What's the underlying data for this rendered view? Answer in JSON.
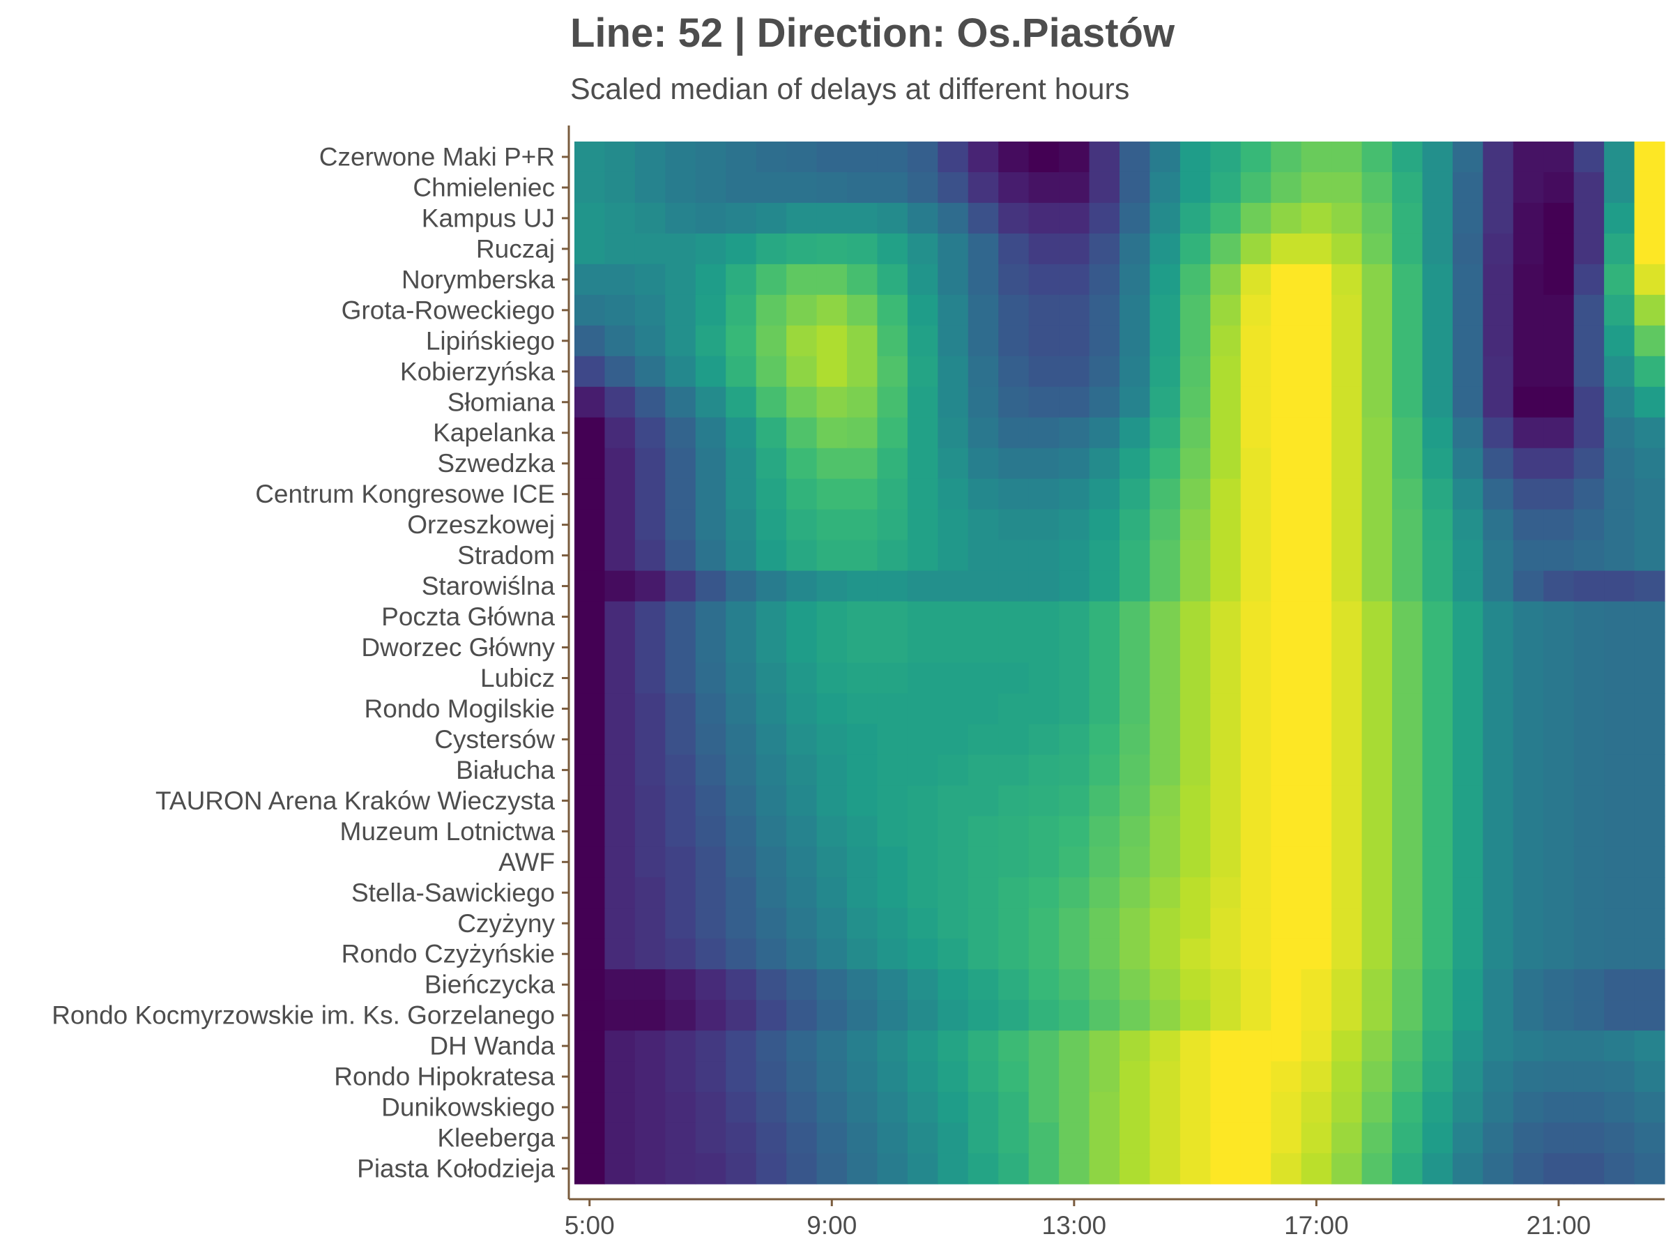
{
  "chart_data": {
    "type": "heatmap",
    "title": "Line: 52 | Direction: Os.Piastów",
    "subtitle": "Scaled median of delays at different hours",
    "xlabel": "",
    "ylabel": "",
    "x_tick_labels": [
      "5:00",
      "9:00",
      "13:00",
      "17:00",
      "21:00"
    ],
    "x_tick_hours": [
      5,
      9,
      13,
      17,
      21
    ],
    "x_hours": [
      5,
      5.5,
      6,
      6.5,
      7,
      7.5,
      8,
      8.5,
      9,
      9.5,
      10,
      10.5,
      11,
      11.5,
      12,
      12.5,
      13,
      13.5,
      14,
      14.5,
      15,
      15.5,
      16,
      16.5,
      17,
      17.5,
      18,
      18.5,
      19,
      19.5,
      20,
      20.5,
      21,
      21.5,
      22,
      22.5
    ],
    "stops": [
      "Czerwone Maki P+R",
      "Chmieleniec",
      "Kampus UJ",
      "Ruczaj",
      "Norymberska",
      "Grota-Roweckiego",
      "Lipińskiego",
      "Kobierzyńska",
      "Słomiana",
      "Kapelanka",
      "Szwedzka",
      "Centrum Kongresowe ICE",
      "Orzeszkowej",
      "Stradom",
      "Starowiślna",
      "Poczta Główna",
      "Dworzec Główny",
      "Lubicz",
      "Rondo Mogilskie",
      "Cystersów",
      "Białucha",
      "TAURON Arena Kraków Wieczysta",
      "Muzeum Lotnictwa",
      "AWF",
      "Stella-Sawickiego",
      "Czyżyny",
      "Rondo Czyżyńskie",
      "Bieńczycka",
      "Rondo Kocmyrzowskie im. Ks. Gorzelanego",
      "DH Wanda",
      "Rondo Hipokratesa",
      "Dunikowskiego",
      "Kleeberga",
      "Piasta Kołodzieja"
    ],
    "colorscale": "viridis",
    "value_range": [
      0,
      1
    ],
    "values": [
      [
        0.5,
        0.48,
        0.45,
        0.42,
        0.4,
        0.38,
        0.36,
        0.35,
        0.33,
        0.33,
        0.33,
        0.3,
        0.2,
        0.1,
        0.03,
        0.0,
        0.02,
        0.15,
        0.3,
        0.42,
        0.55,
        0.6,
        0.67,
        0.73,
        0.77,
        0.77,
        0.7,
        0.6,
        0.5,
        0.35,
        0.15,
        0.05,
        0.05,
        0.2,
        0.5,
        1.0
      ],
      [
        0.5,
        0.48,
        0.45,
        0.42,
        0.4,
        0.38,
        0.38,
        0.38,
        0.37,
        0.36,
        0.36,
        0.32,
        0.25,
        0.15,
        0.08,
        0.05,
        0.05,
        0.15,
        0.3,
        0.45,
        0.55,
        0.62,
        0.7,
        0.76,
        0.8,
        0.8,
        0.73,
        0.63,
        0.5,
        0.33,
        0.15,
        0.05,
        0.03,
        0.15,
        0.5,
        1.0
      ],
      [
        0.52,
        0.5,
        0.48,
        0.45,
        0.43,
        0.45,
        0.47,
        0.5,
        0.5,
        0.5,
        0.48,
        0.42,
        0.35,
        0.25,
        0.15,
        0.12,
        0.12,
        0.2,
        0.33,
        0.48,
        0.6,
        0.68,
        0.78,
        0.83,
        0.86,
        0.83,
        0.76,
        0.65,
        0.5,
        0.33,
        0.15,
        0.03,
        0.0,
        0.15,
        0.55,
        1.0
      ],
      [
        0.52,
        0.5,
        0.5,
        0.5,
        0.52,
        0.55,
        0.6,
        0.62,
        0.63,
        0.62,
        0.57,
        0.5,
        0.42,
        0.33,
        0.23,
        0.18,
        0.18,
        0.25,
        0.38,
        0.52,
        0.65,
        0.75,
        0.85,
        0.92,
        0.92,
        0.87,
        0.78,
        0.65,
        0.5,
        0.32,
        0.13,
        0.03,
        0.0,
        0.15,
        0.6,
        1.0
      ],
      [
        0.45,
        0.45,
        0.47,
        0.5,
        0.55,
        0.62,
        0.7,
        0.75,
        0.75,
        0.7,
        0.62,
        0.52,
        0.42,
        0.33,
        0.25,
        0.22,
        0.22,
        0.28,
        0.4,
        0.55,
        0.7,
        0.82,
        0.95,
        1.0,
        1.0,
        0.92,
        0.82,
        0.68,
        0.52,
        0.33,
        0.12,
        0.02,
        0.0,
        0.2,
        0.65,
        0.95
      ],
      [
        0.4,
        0.42,
        0.45,
        0.5,
        0.56,
        0.65,
        0.75,
        0.8,
        0.83,
        0.78,
        0.68,
        0.55,
        0.45,
        0.35,
        0.28,
        0.25,
        0.25,
        0.3,
        0.42,
        0.57,
        0.72,
        0.85,
        0.97,
        1.0,
        1.0,
        0.93,
        0.82,
        0.68,
        0.52,
        0.33,
        0.12,
        0.02,
        0.02,
        0.25,
        0.6,
        0.85
      ],
      [
        0.32,
        0.38,
        0.43,
        0.5,
        0.58,
        0.67,
        0.77,
        0.85,
        0.88,
        0.83,
        0.7,
        0.57,
        0.45,
        0.35,
        0.28,
        0.25,
        0.25,
        0.3,
        0.42,
        0.57,
        0.72,
        0.87,
        0.98,
        1.0,
        1.0,
        0.93,
        0.82,
        0.68,
        0.52,
        0.33,
        0.12,
        0.02,
        0.02,
        0.25,
        0.55,
        0.75
      ],
      [
        0.22,
        0.3,
        0.38,
        0.47,
        0.55,
        0.65,
        0.75,
        0.83,
        0.88,
        0.83,
        0.72,
        0.58,
        0.47,
        0.37,
        0.3,
        0.27,
        0.27,
        0.32,
        0.43,
        0.58,
        0.73,
        0.88,
        0.98,
        1.0,
        1.0,
        0.93,
        0.82,
        0.68,
        0.52,
        0.33,
        0.13,
        0.02,
        0.02,
        0.25,
        0.5,
        0.65
      ],
      [
        0.08,
        0.18,
        0.28,
        0.38,
        0.48,
        0.58,
        0.7,
        0.78,
        0.82,
        0.8,
        0.7,
        0.57,
        0.47,
        0.38,
        0.32,
        0.3,
        0.3,
        0.35,
        0.45,
        0.6,
        0.74,
        0.88,
        0.98,
        1.0,
        1.0,
        0.93,
        0.82,
        0.68,
        0.52,
        0.33,
        0.13,
        0.0,
        0.0,
        0.2,
        0.45,
        0.55
      ],
      [
        0.0,
        0.12,
        0.22,
        0.32,
        0.42,
        0.52,
        0.63,
        0.72,
        0.78,
        0.77,
        0.68,
        0.57,
        0.48,
        0.4,
        0.35,
        0.35,
        0.37,
        0.42,
        0.52,
        0.63,
        0.76,
        0.88,
        0.98,
        1.0,
        1.0,
        0.93,
        0.83,
        0.7,
        0.55,
        0.38,
        0.2,
        0.08,
        0.08,
        0.2,
        0.4,
        0.45
      ],
      [
        0.0,
        0.1,
        0.2,
        0.3,
        0.4,
        0.5,
        0.6,
        0.68,
        0.72,
        0.72,
        0.65,
        0.57,
        0.5,
        0.43,
        0.4,
        0.4,
        0.42,
        0.48,
        0.57,
        0.67,
        0.78,
        0.88,
        0.97,
        1.0,
        1.0,
        0.93,
        0.83,
        0.7,
        0.57,
        0.42,
        0.27,
        0.18,
        0.18,
        0.25,
        0.38,
        0.42
      ],
      [
        0.0,
        0.1,
        0.2,
        0.3,
        0.4,
        0.5,
        0.58,
        0.65,
        0.68,
        0.68,
        0.63,
        0.57,
        0.52,
        0.47,
        0.45,
        0.45,
        0.47,
        0.52,
        0.6,
        0.7,
        0.8,
        0.9,
        0.97,
        1.0,
        1.0,
        0.93,
        0.83,
        0.72,
        0.6,
        0.47,
        0.33,
        0.25,
        0.25,
        0.3,
        0.37,
        0.4
      ],
      [
        0.0,
        0.1,
        0.2,
        0.3,
        0.4,
        0.48,
        0.57,
        0.62,
        0.65,
        0.65,
        0.62,
        0.57,
        0.53,
        0.5,
        0.48,
        0.48,
        0.5,
        0.55,
        0.63,
        0.72,
        0.82,
        0.9,
        0.97,
        1.0,
        1.0,
        0.93,
        0.83,
        0.73,
        0.62,
        0.5,
        0.38,
        0.3,
        0.3,
        0.33,
        0.37,
        0.4
      ],
      [
        0.0,
        0.1,
        0.18,
        0.28,
        0.38,
        0.47,
        0.55,
        0.6,
        0.63,
        0.63,
        0.6,
        0.57,
        0.53,
        0.5,
        0.5,
        0.5,
        0.52,
        0.57,
        0.65,
        0.74,
        0.83,
        0.9,
        0.97,
        1.0,
        1.0,
        0.93,
        0.83,
        0.73,
        0.63,
        0.52,
        0.4,
        0.33,
        0.33,
        0.35,
        0.37,
        0.4
      ],
      [
        0.0,
        0.03,
        0.07,
        0.17,
        0.27,
        0.35,
        0.42,
        0.47,
        0.5,
        0.52,
        0.52,
        0.5,
        0.5,
        0.5,
        0.5,
        0.5,
        0.52,
        0.57,
        0.65,
        0.74,
        0.83,
        0.9,
        0.97,
        1.0,
        1.0,
        0.93,
        0.83,
        0.73,
        0.63,
        0.52,
        0.4,
        0.3,
        0.25,
        0.23,
        0.23,
        0.25
      ],
      [
        0.0,
        0.12,
        0.2,
        0.28,
        0.36,
        0.43,
        0.5,
        0.55,
        0.58,
        0.6,
        0.6,
        0.58,
        0.58,
        0.58,
        0.58,
        0.58,
        0.6,
        0.65,
        0.72,
        0.8,
        0.87,
        0.93,
        0.98,
        1.0,
        1.0,
        0.95,
        0.87,
        0.77,
        0.67,
        0.57,
        0.47,
        0.42,
        0.4,
        0.38,
        0.37,
        0.37
      ],
      [
        0.0,
        0.12,
        0.2,
        0.28,
        0.36,
        0.43,
        0.5,
        0.55,
        0.58,
        0.6,
        0.6,
        0.58,
        0.58,
        0.58,
        0.58,
        0.58,
        0.6,
        0.65,
        0.72,
        0.8,
        0.87,
        0.93,
        0.98,
        1.0,
        1.0,
        0.95,
        0.87,
        0.77,
        0.67,
        0.57,
        0.47,
        0.42,
        0.4,
        0.38,
        0.37,
        0.37
      ],
      [
        0.0,
        0.12,
        0.2,
        0.28,
        0.35,
        0.42,
        0.48,
        0.53,
        0.57,
        0.58,
        0.58,
        0.57,
        0.57,
        0.57,
        0.57,
        0.58,
        0.6,
        0.65,
        0.72,
        0.8,
        0.87,
        0.93,
        0.98,
        1.0,
        1.0,
        0.95,
        0.87,
        0.77,
        0.67,
        0.57,
        0.47,
        0.42,
        0.4,
        0.38,
        0.37,
        0.37
      ],
      [
        0.0,
        0.12,
        0.18,
        0.25,
        0.33,
        0.4,
        0.47,
        0.52,
        0.55,
        0.57,
        0.57,
        0.57,
        0.57,
        0.57,
        0.58,
        0.58,
        0.6,
        0.65,
        0.72,
        0.8,
        0.87,
        0.93,
        0.98,
        1.0,
        1.0,
        0.95,
        0.87,
        0.77,
        0.67,
        0.57,
        0.47,
        0.42,
        0.4,
        0.38,
        0.37,
        0.37
      ],
      [
        0.0,
        0.12,
        0.18,
        0.25,
        0.32,
        0.38,
        0.45,
        0.5,
        0.53,
        0.55,
        0.57,
        0.57,
        0.57,
        0.58,
        0.58,
        0.6,
        0.62,
        0.67,
        0.73,
        0.8,
        0.87,
        0.93,
        0.98,
        1.0,
        1.0,
        0.95,
        0.87,
        0.77,
        0.67,
        0.57,
        0.47,
        0.42,
        0.4,
        0.38,
        0.37,
        0.37
      ],
      [
        0.0,
        0.12,
        0.18,
        0.23,
        0.3,
        0.37,
        0.43,
        0.48,
        0.52,
        0.55,
        0.57,
        0.57,
        0.58,
        0.6,
        0.6,
        0.62,
        0.63,
        0.68,
        0.74,
        0.8,
        0.87,
        0.93,
        0.98,
        1.0,
        1.0,
        0.95,
        0.87,
        0.77,
        0.67,
        0.57,
        0.47,
        0.42,
        0.4,
        0.38,
        0.37,
        0.37
      ],
      [
        0.0,
        0.12,
        0.17,
        0.22,
        0.28,
        0.35,
        0.42,
        0.47,
        0.52,
        0.55,
        0.57,
        0.58,
        0.6,
        0.6,
        0.62,
        0.63,
        0.65,
        0.7,
        0.75,
        0.82,
        0.88,
        0.93,
        0.98,
        1.0,
        1.0,
        0.95,
        0.87,
        0.77,
        0.67,
        0.57,
        0.47,
        0.42,
        0.4,
        0.38,
        0.37,
        0.37
      ],
      [
        0.0,
        0.12,
        0.17,
        0.22,
        0.27,
        0.33,
        0.4,
        0.45,
        0.5,
        0.53,
        0.57,
        0.58,
        0.6,
        0.62,
        0.63,
        0.65,
        0.67,
        0.72,
        0.77,
        0.83,
        0.88,
        0.93,
        0.98,
        1.0,
        1.0,
        0.95,
        0.87,
        0.77,
        0.67,
        0.57,
        0.47,
        0.42,
        0.4,
        0.38,
        0.37,
        0.37
      ],
      [
        0.0,
        0.12,
        0.17,
        0.2,
        0.25,
        0.32,
        0.38,
        0.43,
        0.48,
        0.52,
        0.55,
        0.58,
        0.6,
        0.62,
        0.63,
        0.65,
        0.68,
        0.73,
        0.78,
        0.83,
        0.88,
        0.93,
        0.98,
        1.0,
        1.0,
        0.95,
        0.87,
        0.77,
        0.67,
        0.57,
        0.47,
        0.42,
        0.4,
        0.38,
        0.37,
        0.37
      ],
      [
        0.0,
        0.12,
        0.15,
        0.2,
        0.25,
        0.3,
        0.37,
        0.42,
        0.47,
        0.52,
        0.55,
        0.58,
        0.6,
        0.62,
        0.65,
        0.67,
        0.7,
        0.75,
        0.8,
        0.85,
        0.9,
        0.94,
        0.98,
        1.0,
        1.0,
        0.95,
        0.87,
        0.77,
        0.67,
        0.57,
        0.47,
        0.42,
        0.4,
        0.38,
        0.37,
        0.37
      ],
      [
        0.0,
        0.12,
        0.15,
        0.2,
        0.25,
        0.3,
        0.35,
        0.4,
        0.45,
        0.5,
        0.53,
        0.57,
        0.6,
        0.62,
        0.65,
        0.68,
        0.72,
        0.77,
        0.82,
        0.87,
        0.9,
        0.95,
        0.98,
        1.0,
        1.0,
        0.95,
        0.87,
        0.77,
        0.67,
        0.57,
        0.47,
        0.42,
        0.4,
        0.38,
        0.37,
        0.37
      ],
      [
        0.0,
        0.12,
        0.15,
        0.18,
        0.23,
        0.28,
        0.33,
        0.38,
        0.43,
        0.48,
        0.52,
        0.55,
        0.58,
        0.62,
        0.65,
        0.68,
        0.72,
        0.77,
        0.82,
        0.87,
        0.92,
        0.95,
        0.98,
        1.0,
        1.0,
        0.95,
        0.87,
        0.77,
        0.67,
        0.57,
        0.47,
        0.42,
        0.4,
        0.38,
        0.37,
        0.37
      ],
      [
        0.0,
        0.03,
        0.03,
        0.07,
        0.12,
        0.18,
        0.25,
        0.3,
        0.35,
        0.4,
        0.45,
        0.5,
        0.55,
        0.58,
        0.62,
        0.67,
        0.7,
        0.75,
        0.8,
        0.85,
        0.9,
        0.93,
        0.97,
        1.0,
        0.98,
        0.93,
        0.85,
        0.75,
        0.65,
        0.55,
        0.45,
        0.38,
        0.35,
        0.33,
        0.3,
        0.3
      ],
      [
        0.0,
        0.02,
        0.02,
        0.05,
        0.1,
        0.15,
        0.22,
        0.28,
        0.33,
        0.38,
        0.43,
        0.48,
        0.53,
        0.57,
        0.6,
        0.65,
        0.68,
        0.73,
        0.78,
        0.83,
        0.88,
        0.93,
        0.97,
        1.0,
        0.98,
        0.93,
        0.85,
        0.75,
        0.65,
        0.55,
        0.45,
        0.38,
        0.35,
        0.33,
        0.3,
        0.3
      ],
      [
        0.0,
        0.08,
        0.1,
        0.13,
        0.17,
        0.22,
        0.28,
        0.33,
        0.38,
        0.43,
        0.48,
        0.53,
        0.58,
        0.63,
        0.68,
        0.72,
        0.77,
        0.82,
        0.87,
        0.92,
        0.97,
        1.0,
        1.0,
        1.0,
        0.97,
        0.9,
        0.82,
        0.72,
        0.62,
        0.52,
        0.45,
        0.42,
        0.4,
        0.4,
        0.42,
        0.45
      ],
      [
        0.0,
        0.08,
        0.1,
        0.13,
        0.17,
        0.22,
        0.27,
        0.32,
        0.37,
        0.42,
        0.47,
        0.52,
        0.57,
        0.62,
        0.67,
        0.72,
        0.77,
        0.82,
        0.88,
        0.93,
        0.97,
        1.0,
        1.0,
        0.98,
        0.95,
        0.88,
        0.8,
        0.7,
        0.6,
        0.5,
        0.42,
        0.38,
        0.37,
        0.37,
        0.38,
        0.42
      ],
      [
        0.0,
        0.08,
        0.1,
        0.12,
        0.15,
        0.2,
        0.25,
        0.3,
        0.35,
        0.4,
        0.45,
        0.5,
        0.55,
        0.6,
        0.65,
        0.72,
        0.77,
        0.83,
        0.88,
        0.93,
        0.97,
        1.0,
        1.0,
        0.97,
        0.93,
        0.87,
        0.78,
        0.67,
        0.57,
        0.48,
        0.4,
        0.35,
        0.33,
        0.33,
        0.35,
        0.38
      ],
      [
        0.0,
        0.08,
        0.1,
        0.12,
        0.15,
        0.18,
        0.23,
        0.28,
        0.33,
        0.38,
        0.43,
        0.48,
        0.53,
        0.6,
        0.65,
        0.7,
        0.77,
        0.83,
        0.88,
        0.93,
        0.97,
        1.0,
        1.0,
        0.97,
        0.92,
        0.85,
        0.75,
        0.65,
        0.55,
        0.45,
        0.37,
        0.32,
        0.3,
        0.3,
        0.32,
        0.35
      ],
      [
        0.0,
        0.08,
        0.1,
        0.12,
        0.13,
        0.17,
        0.22,
        0.27,
        0.32,
        0.37,
        0.42,
        0.47,
        0.53,
        0.58,
        0.63,
        0.7,
        0.77,
        0.83,
        0.88,
        0.93,
        0.97,
        1.0,
        1.0,
        0.95,
        0.9,
        0.83,
        0.73,
        0.62,
        0.52,
        0.42,
        0.35,
        0.3,
        0.27,
        0.27,
        0.3,
        0.33
      ]
    ]
  }
}
